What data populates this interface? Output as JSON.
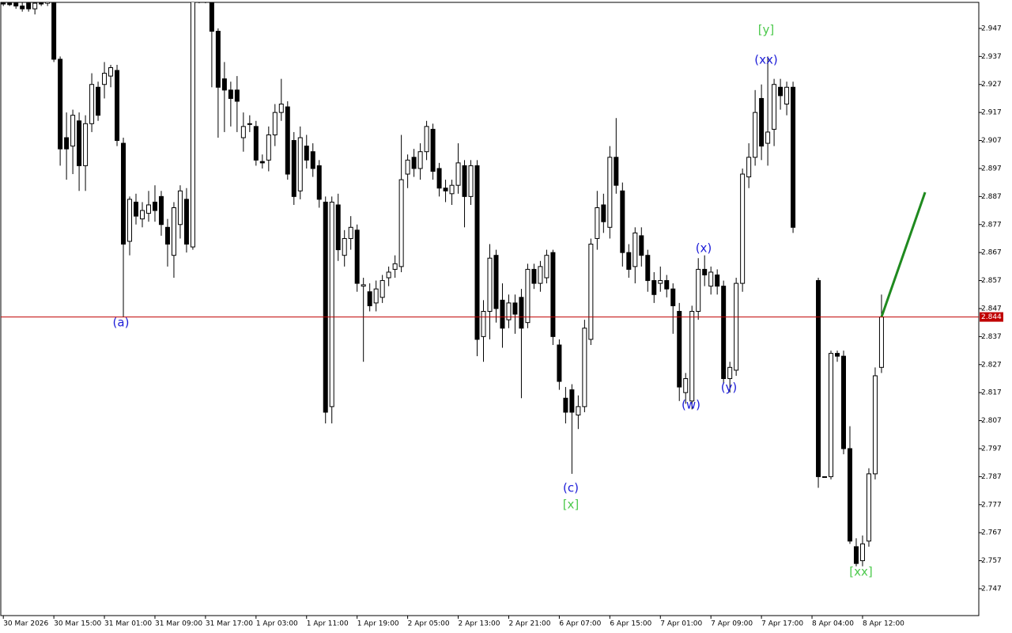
{
  "chart_data": {
    "type": "candlestick",
    "ylim": [
      2.7374,
      2.9563
    ],
    "xlim": [
      -0.4,
      154.4
    ],
    "yticks": [
      2.747,
      2.757,
      2.767,
      2.777,
      2.787,
      2.797,
      2.807,
      2.817,
      2.827,
      2.837,
      2.847,
      2.857,
      2.867,
      2.877,
      2.887,
      2.897,
      2.907,
      2.917,
      2.927,
      2.937,
      2.947
    ],
    "xticks": [
      {
        "value": 0,
        "label": "30 Mar 2026"
      },
      {
        "value": 8,
        "label": "30 Mar 15:00"
      },
      {
        "value": 16,
        "label": "31 Mar 01:00"
      },
      {
        "value": 24,
        "label": "31 Mar 09:00"
      },
      {
        "value": 32,
        "label": "31 Mar 17:00"
      },
      {
        "value": 40,
        "label": "1 Apr 03:00"
      },
      {
        "value": 48,
        "label": "1 Apr 11:00"
      },
      {
        "value": 56,
        "label": "1 Apr 19:00"
      },
      {
        "value": 64,
        "label": "2 Apr 05:00"
      },
      {
        "value": 72,
        "label": "2 Apr 13:00"
      },
      {
        "value": 80,
        "label": "2 Apr 21:00"
      },
      {
        "value": 88,
        "label": "6 Apr 07:00"
      },
      {
        "value": 96,
        "label": "6 Apr 15:00"
      },
      {
        "value": 104,
        "label": "7 Apr 01:00"
      },
      {
        "value": 112,
        "label": "7 Apr 09:00"
      },
      {
        "value": 120,
        "label": "7 Apr 17:00"
      },
      {
        "value": 128,
        "label": "8 Apr 04:00"
      },
      {
        "value": 136,
        "label": "8 Apr 12:00"
      }
    ],
    "ohlc": [
      [
        2.956,
        2.957,
        2.955,
        2.956
      ],
      [
        2.956,
        2.957,
        2.955,
        2.9555
      ],
      [
        2.956,
        2.957,
        2.954,
        2.955
      ],
      [
        2.955,
        2.957,
        2.953,
        2.954
      ],
      [
        2.956,
        2.957,
        2.953,
        2.954
      ],
      [
        2.954,
        2.957,
        2.952,
        2.956
      ],
      [
        2.956,
        2.957,
        2.955,
        2.956
      ],
      [
        2.956,
        2.957,
        2.955,
        2.9565
      ],
      [
        2.956,
        2.957,
        2.935,
        2.936
      ],
      [
        2.936,
        2.937,
        2.898,
        2.904
      ],
      [
        2.908,
        2.917,
        2.893,
        2.904
      ],
      [
        2.905,
        2.918,
        2.895,
        2.916
      ],
      [
        2.914,
        2.917,
        2.889,
        2.898
      ],
      [
        2.898,
        2.916,
        2.889,
        2.913
      ],
      [
        2.913,
        2.931,
        2.91,
        2.927
      ],
      [
        2.926,
        2.928,
        2.914,
        2.916
      ],
      [
        2.927,
        2.935,
        2.922,
        2.931
      ],
      [
        2.93,
        2.934,
        2.926,
        2.933
      ],
      [
        2.932,
        2.934,
        2.905,
        2.907
      ],
      [
        2.906,
        2.908,
        2.844,
        2.87
      ],
      [
        2.871,
        2.887,
        2.866,
        2.886
      ],
      [
        2.885,
        2.888,
        2.877,
        2.88
      ],
      [
        2.879,
        2.885,
        2.876,
        2.882
      ],
      [
        2.881,
        2.889,
        2.878,
        2.884
      ],
      [
        2.885,
        2.891,
        2.878,
        2.882
      ],
      [
        2.887,
        2.889,
        2.873,
        2.877
      ],
      [
        2.876,
        2.879,
        2.862,
        2.87
      ],
      [
        2.866,
        2.885,
        2.858,
        2.883
      ],
      [
        2.877,
        2.891,
        2.872,
        2.889
      ],
      [
        2.886,
        2.89,
        2.867,
        2.87
      ],
      [
        2.869,
        2.957,
        2.868,
        2.957
      ],
      [
        2.957,
        2.96,
        2.956,
        2.958
      ],
      [
        2.958,
        2.96,
        2.956,
        2.957
      ],
      [
        2.957,
        2.958,
        2.926,
        2.946
      ],
      [
        2.946,
        2.947,
        2.908,
        2.926
      ],
      [
        2.929,
        2.935,
        2.91,
        2.925
      ],
      [
        2.925,
        2.928,
        2.912,
        2.922
      ],
      [
        2.925,
        2.93,
        2.91,
        2.921
      ],
      [
        2.908,
        2.917,
        2.903,
        2.912
      ],
      [
        2.913,
        2.916,
        2.91,
        2.9128
      ],
      [
        2.912,
        2.914,
        2.898,
        2.9
      ],
      [
        2.8995,
        2.902,
        2.897,
        2.899
      ],
      [
        2.9,
        2.912,
        2.896,
        2.909
      ],
      [
        2.909,
        2.92,
        2.905,
        2.917
      ],
      [
        2.917,
        2.929,
        2.914,
        2.92
      ],
      [
        2.919,
        2.921,
        2.893,
        2.895
      ],
      [
        2.907,
        2.91,
        2.884,
        2.887
      ],
      [
        2.889,
        2.912,
        2.886,
        2.908
      ],
      [
        2.905,
        2.909,
        2.897,
        2.9
      ],
      [
        2.903,
        2.906,
        2.894,
        2.897
      ],
      [
        2.898,
        2.9,
        2.883,
        2.886
      ],
      [
        2.885,
        2.887,
        2.806,
        2.81
      ],
      [
        2.812,
        2.887,
        2.806,
        2.885
      ],
      [
        2.884,
        2.888,
        2.864,
        2.868
      ],
      [
        2.866,
        2.875,
        2.862,
        2.872
      ],
      [
        2.872,
        2.88,
        2.868,
        2.876
      ],
      [
        2.875,
        2.877,
        2.853,
        2.856
      ],
      [
        2.855,
        2.858,
        2.828,
        2.8555
      ],
      [
        2.853,
        2.856,
        2.846,
        2.848
      ],
      [
        2.849,
        2.857,
        2.846,
        2.854
      ],
      [
        2.851,
        2.859,
        2.849,
        2.857
      ],
      [
        2.858,
        2.862,
        2.855,
        2.86
      ],
      [
        2.861,
        2.866,
        2.858,
        2.863
      ],
      [
        2.862,
        2.909,
        2.86,
        2.893
      ],
      [
        2.895,
        2.902,
        2.89,
        2.9
      ],
      [
        2.901,
        2.904,
        2.894,
        2.897
      ],
      [
        2.897,
        2.906,
        2.893,
        2.903
      ],
      [
        2.903,
        2.914,
        2.9,
        2.912
      ],
      [
        2.911,
        2.913,
        2.893,
        2.896
      ],
      [
        2.897,
        2.899,
        2.887,
        2.89
      ],
      [
        2.89,
        2.893,
        2.885,
        2.889
      ],
      [
        2.888,
        2.893,
        2.884,
        2.891
      ],
      [
        2.891,
        2.906,
        2.888,
        2.899
      ],
      [
        2.898,
        2.9,
        2.876,
        2.887
      ],
      [
        2.887,
        2.9,
        2.884,
        2.898
      ],
      [
        2.898,
        2.9,
        2.83,
        2.836
      ],
      [
        2.837,
        2.85,
        2.828,
        2.846
      ],
      [
        2.846,
        2.87,
        2.836,
        2.865
      ],
      [
        2.866,
        2.868,
        2.842,
        2.847
      ],
      [
        2.85,
        2.856,
        2.833,
        2.84
      ],
      [
        2.843,
        2.852,
        2.84,
        2.849
      ],
      [
        2.849,
        2.852,
        2.838,
        2.845
      ],
      [
        2.851,
        2.854,
        2.815,
        2.84
      ],
      [
        2.842,
        2.863,
        2.84,
        2.861
      ],
      [
        2.861,
        2.863,
        2.854,
        2.856
      ],
      [
        2.856,
        2.864,
        2.853,
        2.862
      ],
      [
        2.858,
        2.868,
        2.856,
        2.866
      ],
      [
        2.867,
        2.868,
        2.834,
        2.837
      ],
      [
        2.834,
        2.836,
        2.818,
        2.821
      ],
      [
        2.815,
        2.819,
        2.806,
        2.81
      ],
      [
        2.818,
        2.82,
        2.788,
        2.81
      ],
      [
        2.809,
        2.816,
        2.804,
        2.812
      ],
      [
        2.812,
        2.843,
        2.81,
        2.84
      ],
      [
        2.836,
        2.872,
        2.834,
        2.87
      ],
      [
        2.872,
        2.889,
        2.868,
        2.883
      ],
      [
        2.884,
        2.888,
        2.874,
        2.878
      ],
      [
        2.876,
        2.905,
        2.872,
        2.901
      ],
      [
        2.901,
        2.915,
        2.888,
        2.891
      ],
      [
        2.889,
        2.892,
        2.862,
        2.867
      ],
      [
        2.867,
        2.87,
        2.858,
        2.861
      ],
      [
        2.862,
        2.876,
        2.856,
        2.874
      ],
      [
        2.873,
        2.876,
        2.862,
        2.866
      ],
      [
        2.866,
        2.868,
        2.853,
        2.857
      ],
      [
        2.857,
        2.86,
        2.849,
        2.852
      ],
      [
        2.856,
        2.862,
        2.853,
        2.857
      ],
      [
        2.857,
        2.859,
        2.851,
        2.854
      ],
      [
        2.854,
        2.856,
        2.838,
        2.848
      ],
      [
        2.846,
        2.849,
        2.814,
        2.819
      ],
      [
        2.817,
        2.824,
        2.813,
        2.822
      ],
      [
        2.814,
        2.848,
        2.811,
        2.846
      ],
      [
        2.846,
        2.865,
        2.843,
        2.861
      ],
      [
        2.861,
        2.866,
        2.855,
        2.859
      ],
      [
        2.855,
        2.862,
        2.852,
        2.86
      ],
      [
        2.859,
        2.861,
        2.852,
        2.855
      ],
      [
        2.855,
        2.857,
        2.82,
        2.822
      ],
      [
        2.822,
        2.828,
        2.817,
        2.826
      ],
      [
        2.825,
        2.858,
        2.823,
        2.856
      ],
      [
        2.856,
        2.897,
        2.853,
        2.895
      ],
      [
        2.894,
        2.906,
        2.89,
        2.901
      ],
      [
        2.901,
        2.925,
        2.898,
        2.917
      ],
      [
        2.922,
        2.927,
        2.9,
        2.905
      ],
      [
        2.906,
        2.937,
        2.898,
        2.91
      ],
      [
        2.911,
        2.929,
        2.905,
        2.927
      ],
      [
        2.926,
        2.929,
        2.918,
        2.923
      ],
      [
        2.92,
        2.928,
        2.916,
        2.926
      ],
      [
        2.926,
        2.928,
        2.874,
        2.876
      ],
      null,
      null,
      null,
      [
        2.857,
        2.858,
        2.783,
        2.787
      ],
      [
        2.787,
        2.787,
        2.787,
        2.787
      ],
      [
        2.787,
        2.832,
        2.786,
        2.831
      ],
      [
        2.831,
        2.832,
        2.828,
        2.83
      ],
      [
        2.83,
        2.832,
        2.795,
        2.797
      ],
      [
        2.797,
        2.805,
        2.763,
        2.764
      ],
      [
        2.762,
        2.765,
        2.755,
        2.756
      ],
      [
        2.757,
        2.766,
        2.755,
        2.763
      ],
      [
        2.764,
        2.79,
        2.762,
        2.788
      ],
      [
        2.788,
        2.826,
        2.786,
        2.823
      ],
      [
        2.826,
        2.852,
        2.824,
        2.844
      ]
    ],
    "current_price": 2.844,
    "current_price_color": "#c00000",
    "forecast_line": {
      "color": "#1f8a1f",
      "x": [
        139,
        145.9
      ],
      "values": [
        2.844,
        2.8885
      ]
    },
    "annotations": [
      {
        "text": "(a)",
        "color": "#1c1cd8"
      },
      {
        "text": "(c)",
        "color": "#1c1cd8"
      },
      {
        "text": "[x]",
        "color": "#4cc94c"
      },
      {
        "text": "(w)",
        "color": "#1c1cd8"
      },
      {
        "text": "(x)",
        "color": "#1c1cd8"
      },
      {
        "text": "(y)",
        "color": "#1c1cd8"
      },
      {
        "text": "(xx)",
        "color": "#1c1cd8"
      },
      {
        "text": "[y]",
        "color": "#4cc94c"
      },
      {
        "text": "[xx]",
        "color": "#4cc94c"
      }
    ]
  }
}
